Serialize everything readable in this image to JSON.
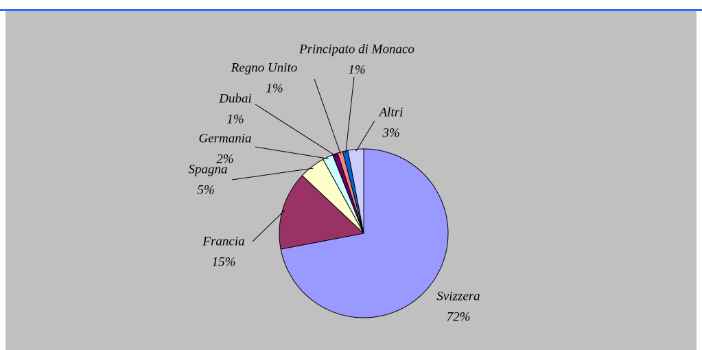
{
  "chart_data": {
    "type": "pie",
    "categories": [
      "Svizzera",
      "Francia",
      "Spagna",
      "Germania",
      "Dubai",
      "Regno Unito",
      "Principato di Monaco",
      "Altri"
    ],
    "values": [
      72,
      15,
      5,
      2,
      1,
      1,
      1,
      3
    ],
    "value_labels": [
      "72%",
      "15%",
      "5%",
      "2%",
      "1%",
      "1%",
      "1%",
      "3%"
    ],
    "colors": [
      "#9999ff",
      "#993366",
      "#ffffcc",
      "#ccffff",
      "#660066",
      "#ff8080",
      "#0066cc",
      "#ccccff"
    ]
  }
}
